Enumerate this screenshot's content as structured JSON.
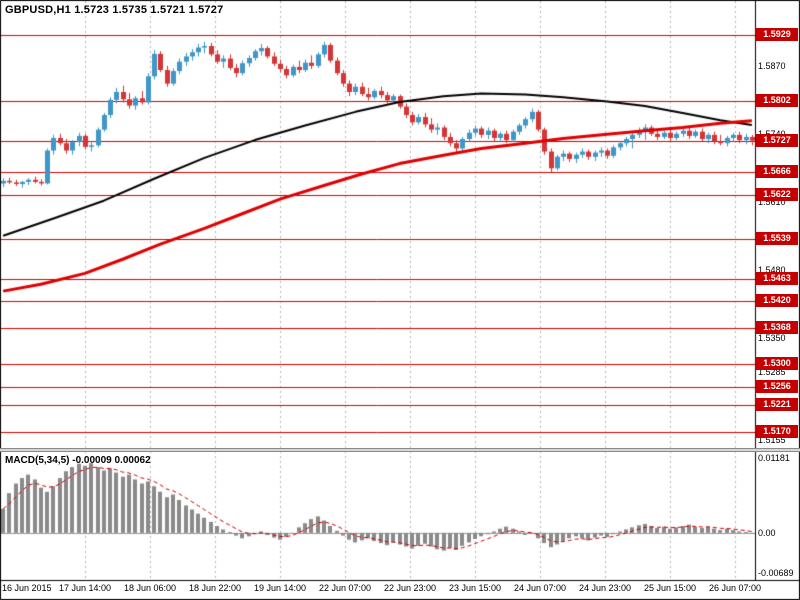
{
  "colors": {
    "background": "#ffffff",
    "up": "#3f96c8",
    "down": "#d53535",
    "level_line": "#d40000",
    "badge_bg": "#c40000",
    "ma_slow": "#000000",
    "ma_fast": "#e00000",
    "histogram": "#8a8a8a",
    "signal": "#cc0000",
    "grid": "#b5b5b5",
    "border": "#000000"
  },
  "chart_data": {
    "type": "candlestick",
    "symbol": "GBPUSD",
    "timeframe": "H1",
    "title_text": "GBPUSD,H1 1.5723 1.5735 1.5721 1.5727",
    "ohlc_display": {
      "open": "1.5723",
      "high": "1.5735",
      "low": "1.5721",
      "close": "1.5727"
    },
    "x_ticks": [
      "16 Jun 2015",
      "17 Jun 14:00",
      "18 Jun 06:00",
      "18 Jun 22:00",
      "19 Jun 14:00",
      "22 Jun 07:00",
      "22 Jun 23:00",
      "23 Jun 15:00",
      "24 Jun 07:00",
      "24 Jun 23:00",
      "25 Jun 15:00",
      "26 Jun 07:00"
    ],
    "price_panel": {
      "ylim": [
        1.5135,
        1.5996
      ],
      "y_tick_labels": [
        "1.5870",
        "1.5740",
        "1.5610",
        "1.5480",
        "1.5350",
        "1.5285",
        "1.5155"
      ],
      "level_lines": [
        "1.5929",
        "1.5802",
        "1.5727",
        "1.5666",
        "1.5622",
        "1.5539",
        "1.5463",
        "1.5420",
        "1.5368",
        "1.5300",
        "1.5256",
        "1.5221",
        "1.5170"
      ],
      "ma_black": [
        [
          0,
          1.5545
        ],
        [
          8,
          1.5578
        ],
        [
          16,
          1.5612
        ],
        [
          24,
          1.5654
        ],
        [
          32,
          1.5694
        ],
        [
          40,
          1.5728
        ],
        [
          48,
          1.5756
        ],
        [
          56,
          1.5782
        ],
        [
          63,
          1.5801
        ],
        [
          70,
          1.5812
        ],
        [
          76,
          1.5817
        ],
        [
          83,
          1.5815
        ],
        [
          89,
          1.581
        ],
        [
          96,
          1.5802
        ],
        [
          102,
          1.5793
        ],
        [
          108,
          1.578
        ],
        [
          114,
          1.5766
        ],
        [
          119,
          1.5757
        ]
      ],
      "ma_red": [
        [
          0,
          1.5439
        ],
        [
          6,
          1.5452
        ],
        [
          13,
          1.5473
        ],
        [
          19,
          1.55
        ],
        [
          25,
          1.5529
        ],
        [
          32,
          1.5559
        ],
        [
          38,
          1.5587
        ],
        [
          44,
          1.5615
        ],
        [
          51,
          1.5641
        ],
        [
          57,
          1.5663
        ],
        [
          63,
          1.5683
        ],
        [
          70,
          1.5699
        ],
        [
          76,
          1.5712
        ],
        [
          83,
          1.5722
        ],
        [
          89,
          1.5731
        ],
        [
          96,
          1.5739
        ],
        [
          102,
          1.5746
        ],
        [
          108,
          1.5752
        ],
        [
          114,
          1.576
        ],
        [
          119,
          1.5765
        ]
      ],
      "candles": [
        [
          1.5645,
          1.5655,
          1.5638,
          1.565
        ],
        [
          1.565,
          1.5656,
          1.5644,
          1.5647
        ],
        [
          1.5647,
          1.5652,
          1.564,
          1.5644
        ],
        [
          1.5644,
          1.565,
          1.5637,
          1.5648
        ],
        [
          1.5648,
          1.5655,
          1.5642,
          1.5652
        ],
        [
          1.5652,
          1.5658,
          1.5645,
          1.5648
        ],
        [
          1.5648,
          1.5653,
          1.5641,
          1.5645
        ],
        [
          1.5645,
          1.5712,
          1.5643,
          1.5708
        ],
        [
          1.5708,
          1.5738,
          1.57,
          1.5732
        ],
        [
          1.5732,
          1.574,
          1.5718,
          1.5722
        ],
        [
          1.5722,
          1.573,
          1.5702,
          1.5708
        ],
        [
          1.5708,
          1.5728,
          1.57,
          1.5724
        ],
        [
          1.5724,
          1.5742,
          1.5716,
          1.5736
        ],
        [
          1.5736,
          1.574,
          1.571,
          1.5715
        ],
        [
          1.5715,
          1.5726,
          1.5706,
          1.5718
        ],
        [
          1.5718,
          1.5752,
          1.5714,
          1.5748
        ],
        [
          1.5748,
          1.578,
          1.5744,
          1.5776
        ],
        [
          1.5776,
          1.581,
          1.577,
          1.5805
        ],
        [
          1.5805,
          1.5828,
          1.5798,
          1.582
        ],
        [
          1.582,
          1.5832,
          1.58,
          1.5806
        ],
        [
          1.5806,
          1.5818,
          1.5788,
          1.5794
        ],
        [
          1.5794,
          1.5812,
          1.5786,
          1.5808
        ],
        [
          1.5808,
          1.5822,
          1.5796,
          1.58
        ],
        [
          1.58,
          1.5856,
          1.5796,
          1.585
        ],
        [
          1.585,
          1.59,
          1.5844,
          1.5893
        ],
        [
          1.5893,
          1.5898,
          1.5858,
          1.5862
        ],
        [
          1.5862,
          1.587,
          1.583,
          1.5836
        ],
        [
          1.5836,
          1.5865,
          1.5832,
          1.586
        ],
        [
          1.586,
          1.5884,
          1.5854,
          1.5878
        ],
        [
          1.5878,
          1.5895,
          1.587,
          1.5888
        ],
        [
          1.5888,
          1.5902,
          1.588,
          1.5896
        ],
        [
          1.5896,
          1.5912,
          1.5888,
          1.5905
        ],
        [
          1.5905,
          1.5916,
          1.5894,
          1.5908
        ],
        [
          1.5908,
          1.5914,
          1.5888,
          1.5892
        ],
        [
          1.5892,
          1.59,
          1.5874,
          1.5878
        ],
        [
          1.5878,
          1.589,
          1.5866,
          1.5884
        ],
        [
          1.5884,
          1.5892,
          1.5862,
          1.5866
        ],
        [
          1.5866,
          1.5874,
          1.5848,
          1.5856
        ],
        [
          1.5856,
          1.588,
          1.5852,
          1.5875
        ],
        [
          1.5875,
          1.589,
          1.5868,
          1.5885
        ],
        [
          1.5885,
          1.5902,
          1.588,
          1.5898
        ],
        [
          1.5898,
          1.5912,
          1.589,
          1.5904
        ],
        [
          1.5904,
          1.5908,
          1.5884,
          1.5888
        ],
        [
          1.5888,
          1.5896,
          1.587,
          1.5874
        ],
        [
          1.5874,
          1.5882,
          1.5858,
          1.5864
        ],
        [
          1.5864,
          1.587,
          1.5846,
          1.5852
        ],
        [
          1.5852,
          1.5872,
          1.5848,
          1.5868
        ],
        [
          1.5868,
          1.588,
          1.5856,
          1.5862
        ],
        [
          1.5862,
          1.5882,
          1.5858,
          1.5876
        ],
        [
          1.5876,
          1.589,
          1.5864,
          1.587
        ],
        [
          1.587,
          1.5896,
          1.5866,
          1.5892
        ],
        [
          1.5892,
          1.5916,
          1.5886,
          1.591
        ],
        [
          1.591,
          1.5914,
          1.5876,
          1.588
        ],
        [
          1.588,
          1.5886,
          1.5852,
          1.5856
        ],
        [
          1.5856,
          1.5862,
          1.583,
          1.5836
        ],
        [
          1.5836,
          1.5842,
          1.5812,
          1.582
        ],
        [
          1.582,
          1.5836,
          1.5814,
          1.583
        ],
        [
          1.583,
          1.5838,
          1.5812,
          1.5816
        ],
        [
          1.5816,
          1.5828,
          1.5804,
          1.581
        ],
        [
          1.581,
          1.5826,
          1.5806,
          1.5822
        ],
        [
          1.5822,
          1.583,
          1.5808,
          1.5814
        ],
        [
          1.5814,
          1.582,
          1.5798,
          1.5804
        ],
        [
          1.5804,
          1.5816,
          1.58,
          1.5812
        ],
        [
          1.5812,
          1.5815,
          1.5788,
          1.5792
        ],
        [
          1.5792,
          1.5798,
          1.577,
          1.5776
        ],
        [
          1.5776,
          1.5782,
          1.5756,
          1.5762
        ],
        [
          1.5762,
          1.5778,
          1.5758,
          1.5772
        ],
        [
          1.5772,
          1.578,
          1.5752,
          1.5758
        ],
        [
          1.5758,
          1.577,
          1.5742,
          1.5748
        ],
        [
          1.5748,
          1.576,
          1.5738,
          1.5752
        ],
        [
          1.5752,
          1.5756,
          1.5728,
          1.5734
        ],
        [
          1.5734,
          1.5742,
          1.5716,
          1.5722
        ],
        [
          1.5722,
          1.5728,
          1.5704,
          1.5712
        ],
        [
          1.5712,
          1.5734,
          1.5708,
          1.573
        ],
        [
          1.573,
          1.5748,
          1.5724,
          1.5742
        ],
        [
          1.5742,
          1.5756,
          1.5736,
          1.575
        ],
        [
          1.575,
          1.5754,
          1.5732,
          1.5738
        ],
        [
          1.5738,
          1.5752,
          1.573,
          1.5746
        ],
        [
          1.5746,
          1.575,
          1.5726,
          1.5732
        ],
        [
          1.5732,
          1.5744,
          1.5724,
          1.574
        ],
        [
          1.574,
          1.5746,
          1.5722,
          1.5728
        ],
        [
          1.5728,
          1.5748,
          1.5724,
          1.5744
        ],
        [
          1.5744,
          1.576,
          1.5738,
          1.5756
        ],
        [
          1.5756,
          1.5772,
          1.575,
          1.5768
        ],
        [
          1.5768,
          1.5788,
          1.5762,
          1.5782
        ],
        [
          1.5782,
          1.5786,
          1.5744,
          1.5748
        ],
        [
          1.5748,
          1.5752,
          1.57,
          1.5706
        ],
        [
          1.5706,
          1.5712,
          1.5666,
          1.5674
        ],
        [
          1.5674,
          1.57,
          1.567,
          1.5696
        ],
        [
          1.5696,
          1.5708,
          1.5688,
          1.5702
        ],
        [
          1.5702,
          1.5706,
          1.5686,
          1.5692
        ],
        [
          1.5692,
          1.5704,
          1.5684,
          1.57
        ],
        [
          1.57,
          1.5712,
          1.5694,
          1.5706
        ],
        [
          1.5706,
          1.571,
          1.569,
          1.5696
        ],
        [
          1.5696,
          1.5708,
          1.5688,
          1.5704
        ],
        [
          1.5704,
          1.5714,
          1.5696,
          1.5708
        ],
        [
          1.5708,
          1.5712,
          1.5692,
          1.5698
        ],
        [
          1.5698,
          1.5718,
          1.5694,
          1.5714
        ],
        [
          1.5714,
          1.5726,
          1.5708,
          1.5722
        ],
        [
          1.5722,
          1.5734,
          1.5716,
          1.573
        ],
        [
          1.573,
          1.5742,
          1.5712,
          1.5738
        ],
        [
          1.5738,
          1.5752,
          1.5732,
          1.5746
        ],
        [
          1.5746,
          1.5758,
          1.5728,
          1.5752
        ],
        [
          1.5752,
          1.5756,
          1.5736,
          1.574
        ],
        [
          1.574,
          1.5748,
          1.5728,
          1.5734
        ],
        [
          1.5734,
          1.5746,
          1.573,
          1.5742
        ],
        [
          1.5742,
          1.5748,
          1.5726,
          1.5732
        ],
        [
          1.5732,
          1.5744,
          1.5728,
          1.574
        ],
        [
          1.574,
          1.575,
          1.5734,
          1.5746
        ],
        [
          1.5746,
          1.5752,
          1.573,
          1.5736
        ],
        [
          1.5736,
          1.5748,
          1.5732,
          1.5744
        ],
        [
          1.5744,
          1.575,
          1.5726,
          1.573
        ],
        [
          1.573,
          1.5742,
          1.5722,
          1.5738
        ],
        [
          1.5738,
          1.5744,
          1.572,
          1.5726
        ],
        [
          1.5726,
          1.5738,
          1.5718,
          1.5722
        ],
        [
          1.5722,
          1.5736,
          1.5716,
          1.5732
        ],
        [
          1.5732,
          1.5742,
          1.5724,
          1.5738
        ],
        [
          1.5738,
          1.5744,
          1.5722,
          1.5728
        ],
        [
          1.5728,
          1.574,
          1.572,
          1.5734
        ],
        [
          1.5734,
          1.5738,
          1.5718,
          1.5727
        ]
      ]
    },
    "macd_panel": {
      "label": "MACD(5,34,5) -0.00009 0.00062",
      "ylim": [
        -0.00689,
        0.01181
      ],
      "y_tick_labels": [
        "0.01181",
        "0.00",
        "-0.00689"
      ],
      "values": [
        0.0035,
        0.0058,
        0.0072,
        0.008,
        0.0085,
        0.0078,
        0.0066,
        0.006,
        0.0068,
        0.008,
        0.009,
        0.0096,
        0.0101,
        0.0098,
        0.0102,
        0.0096,
        0.0091,
        0.0094,
        0.0088,
        0.0082,
        0.0085,
        0.0078,
        0.0072,
        0.0075,
        0.0068,
        0.006,
        0.0052,
        0.0056,
        0.0048,
        0.004,
        0.0034,
        0.0028,
        0.0022,
        0.0016,
        0.001,
        0.0005,
        0.0001,
        -0.0004,
        -0.0008,
        -0.0005,
        -0.0002,
        0.0002,
        -0.0003,
        -0.0007,
        -0.001,
        -0.0006,
        0.0,
        0.0008,
        0.0014,
        0.002,
        0.0024,
        0.0018,
        0.001,
        0.0003,
        -0.0004,
        -0.001,
        -0.0014,
        -0.0011,
        -0.0008,
        -0.0012,
        -0.0015,
        -0.0018,
        -0.0014,
        -0.0017,
        -0.002,
        -0.0023,
        -0.0019,
        -0.0016,
        -0.002,
        -0.0024,
        -0.0026,
        -0.0022,
        -0.0025,
        -0.0019,
        -0.0014,
        -0.0009,
        -0.0005,
        -0.0002,
        0.0002,
        0.0006,
        0.0009,
        0.0006,
        0.0002,
        -0.0003,
        -0.0001,
        -0.0008,
        -0.0015,
        -0.0021,
        -0.0017,
        -0.0012,
        -0.0008,
        -0.0005,
        -0.0008,
        -0.0011,
        -0.0007,
        -0.0004,
        -0.0006,
        -0.0002,
        0.0002,
        0.0005,
        0.0008,
        0.0011,
        0.0013,
        0.001,
        0.0007,
        0.0009,
        0.0006,
        0.0008,
        0.001,
        0.0012,
        0.0009,
        0.0007,
        0.0009,
        0.0006,
        0.0004,
        0.0006,
        0.0004,
        0.0002,
        0.0001,
        -0.0001
      ]
    }
  }
}
